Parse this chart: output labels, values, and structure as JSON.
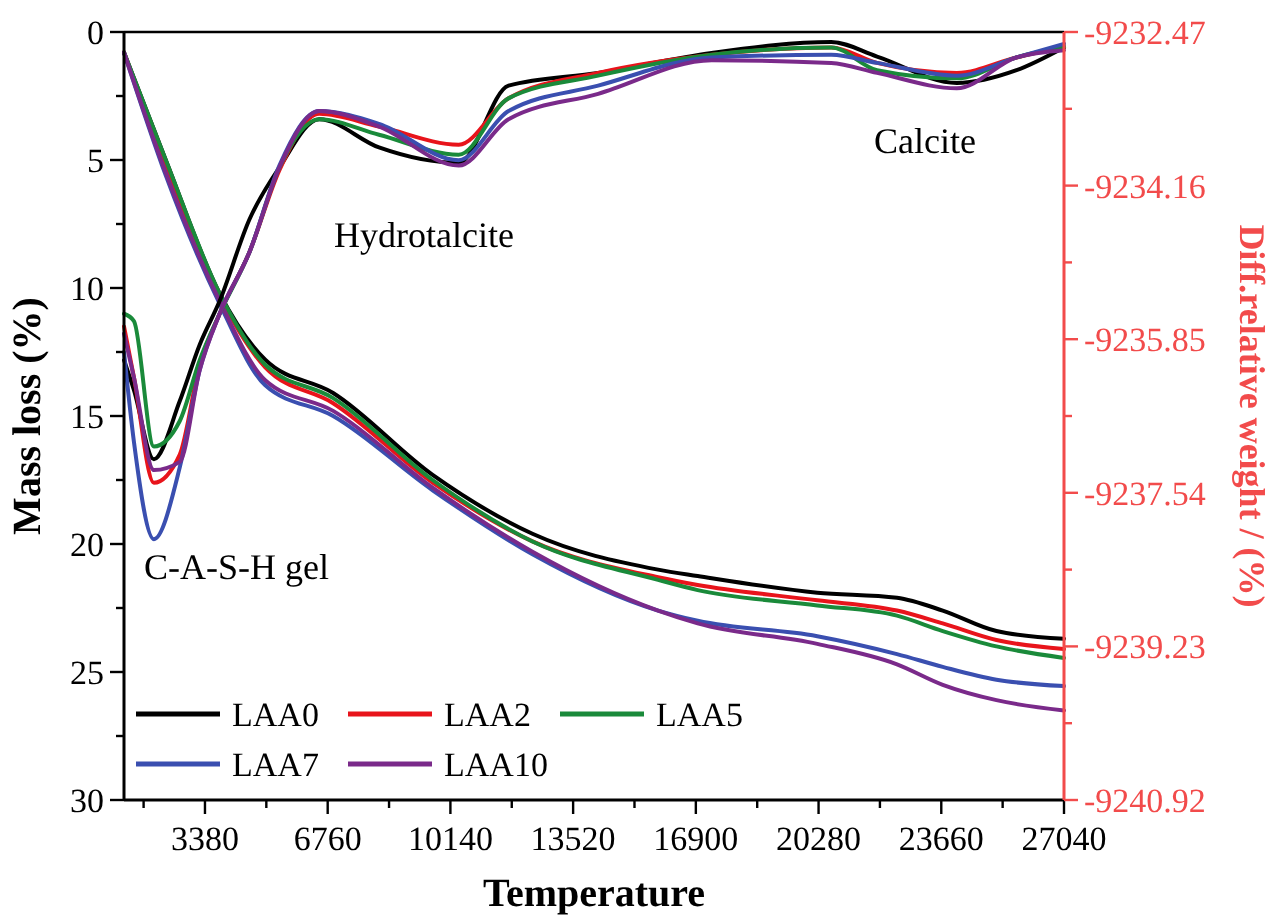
{
  "chart_data": {
    "type": "line",
    "xlabel": "Temperature",
    "ylabel": "Mass loss (%)",
    "y2label": "Diff.relative weight / (%)",
    "xlim": [
      1150,
      27040
    ],
    "xticks": [
      {
        "value": 1690,
        "label": null
      },
      3380,
      {
        "value": 5070,
        "label": null
      },
      6760,
      {
        "value": 8450,
        "label": null
      },
      10140,
      {
        "value": 11830,
        "label": null
      },
      13520,
      {
        "value": 15210,
        "label": null
      },
      16900,
      {
        "value": 18590,
        "label": null
      },
      20280,
      {
        "value": 21970,
        "label": null
      },
      23660,
      {
        "value": 25350,
        "label": null
      },
      27040
    ],
    "ylim": [
      30,
      0
    ],
    "yticks": [
      0,
      {
        "value": 2.5,
        "label": null
      },
      5,
      {
        "value": 7.5,
        "label": null
      },
      10,
      {
        "value": 12.5,
        "label": null
      },
      15,
      {
        "value": 17.5,
        "label": null
      },
      20,
      {
        "value": 22.5,
        "label": null
      },
      25,
      {
        "value": 27.5,
        "label": null
      },
      30
    ],
    "y2lim": [
      -9240.92,
      -9232.47
    ],
    "y2ticks": [
      -9232.47,
      {
        "value": -9233.315,
        "label": null
      },
      -9234.16,
      {
        "value": -9235.005,
        "label": null
      },
      -9235.85,
      {
        "value": -9236.695,
        "label": null
      },
      -9237.54,
      {
        "value": -9238.385,
        "label": null
      },
      -9239.23,
      {
        "value": -9240.075,
        "label": null
      },
      -9240.92
    ],
    "legend": "bottom left",
    "annotations": [
      "Hydrotalcite",
      "Calcite",
      "C-A-S-H gel"
    ],
    "series": [
      {
        "name": "LAA0",
        "color": "#000000",
        "x": [
          1150,
          2300,
          3780,
          5040,
          6910,
          9650,
          12400,
          15860,
          16950,
          20245,
          22440,
          23700,
          25180,
          27040
        ],
        "values": [
          0.8,
          5.0,
          10.2,
          12.8,
          14.1,
          17.3,
          19.6,
          21.0,
          21.25,
          21.9,
          22.1,
          22.6,
          23.4,
          23.7
        ]
      },
      {
        "name": "LAA2",
        "color": "#e8141b",
        "x": [
          1150,
          2300,
          3780,
          5040,
          6910,
          9650,
          12400,
          15860,
          16950,
          20245,
          22440,
          23700,
          25180,
          27040
        ],
        "values": [
          0.8,
          5.2,
          10.3,
          13.1,
          14.5,
          17.6,
          19.9,
          21.3,
          21.6,
          22.2,
          22.6,
          23.1,
          23.75,
          24.1
        ]
      },
      {
        "name": "LAA5",
        "color": "#1a8a3a",
        "x": [
          1150,
          2300,
          3780,
          5040,
          6910,
          9650,
          12400,
          15860,
          16950,
          20245,
          22440,
          23700,
          25180,
          27040
        ],
        "values": [
          0.8,
          5.0,
          10.2,
          13.0,
          14.3,
          17.5,
          19.9,
          21.4,
          21.8,
          22.4,
          22.8,
          23.4,
          24.0,
          24.45
        ]
      },
      {
        "name": "LAA7",
        "color": "#3a4fb0",
        "x": [
          1150,
          2300,
          3780,
          5040,
          6910,
          9650,
          12400,
          15860,
          16950,
          20245,
          22440,
          23700,
          25180,
          27040
        ],
        "values": [
          0.8,
          5.6,
          10.6,
          13.8,
          15.0,
          17.9,
          20.4,
          22.6,
          23.0,
          23.6,
          24.3,
          24.8,
          25.3,
          25.55
        ]
      },
      {
        "name": "LAA10",
        "color": "#7a2a8a",
        "x": [
          1150,
          2300,
          3780,
          5040,
          6910,
          9650,
          12400,
          15860,
          16950,
          20245,
          22440,
          23700,
          25180,
          27040
        ],
        "values": [
          0.8,
          5.5,
          10.5,
          13.6,
          14.8,
          17.8,
          20.3,
          22.6,
          23.1,
          23.9,
          24.7,
          25.5,
          26.1,
          26.5
        ]
      },
      {
        "axis": "y2",
        "color": "#000000",
        "x": [
          1150,
          1424,
          1973,
          2686,
          3235,
          3784,
          4607,
          5430,
          6527,
          8173,
          10368,
          11740,
          14209,
          17337,
          20629,
          21891,
          24086,
          25732,
          27040
        ],
        "values": [
          -9236.08,
          -9236.41,
          -9237.17,
          -9236.53,
          -9235.91,
          -9235.43,
          -9234.53,
          -9233.96,
          -9233.43,
          -9233.74,
          -9233.91,
          -9233.06,
          -9232.92,
          -9232.7,
          -9232.58,
          -9232.74,
          -9233.03,
          -9232.89,
          -9232.64
        ]
      },
      {
        "axis": "y2",
        "color": "#e8141b",
        "x": [
          1150,
          1424,
          1973,
          2686,
          3235,
          3784,
          4607,
          5430,
          6527,
          8173,
          10368,
          11740,
          14209,
          17337,
          20629,
          21891,
          24086,
          25732,
          27040
        ],
        "values": [
          -9235.71,
          -9236.27,
          -9237.43,
          -9237.12,
          -9236.13,
          -9235.57,
          -9234.89,
          -9233.99,
          -9233.37,
          -9233.51,
          -9233.71,
          -9233.2,
          -9232.92,
          -9232.72,
          -9232.64,
          -9232.81,
          -9232.92,
          -9232.75,
          -9232.63
        ]
      },
      {
        "axis": "y2",
        "color": "#1a8a3a",
        "x": [
          1150,
          1424,
          1973,
          2686,
          3235,
          3784,
          4607,
          5430,
          6527,
          8173,
          10368,
          11740,
          14209,
          17337,
          20629,
          21891,
          24086,
          25732,
          27040
        ],
        "values": [
          -9235.57,
          -9235.65,
          -9237.03,
          -9236.75,
          -9236.08,
          -9235.57,
          -9234.89,
          -9233.96,
          -9233.43,
          -9233.6,
          -9233.82,
          -9233.2,
          -9232.95,
          -9232.72,
          -9232.64,
          -9232.89,
          -9232.98,
          -9232.75,
          -9232.63
        ]
      },
      {
        "axis": "y2",
        "color": "#3a4fb0",
        "x": [
          1150,
          1424,
          1973,
          2686,
          3235,
          3784,
          4607,
          5430,
          6527,
          8173,
          10368,
          11740,
          14209,
          17337,
          20629,
          21891,
          24086,
          25732,
          27040
        ],
        "values": [
          -9235.99,
          -9236.98,
          -9238.05,
          -9237.26,
          -9236.19,
          -9235.57,
          -9234.89,
          -9233.94,
          -9233.34,
          -9233.48,
          -9233.88,
          -9233.34,
          -9233.06,
          -9232.75,
          -9232.72,
          -9232.81,
          -9232.95,
          -9232.75,
          -9232.6
        ]
      },
      {
        "axis": "y2",
        "color": "#7a2a8a",
        "x": [
          1150,
          1424,
          1973,
          2686,
          3235,
          3784,
          4607,
          5430,
          6527,
          8173,
          10368,
          11740,
          14209,
          17337,
          20629,
          21891,
          24086,
          25732,
          27040
        ],
        "values": [
          -9235.79,
          -9236.27,
          -9237.29,
          -9237.2,
          -9236.19,
          -9235.57,
          -9234.89,
          -9233.96,
          -9233.34,
          -9233.51,
          -9233.94,
          -9233.43,
          -9233.15,
          -9232.78,
          -9232.81,
          -9232.92,
          -9233.09,
          -9232.75,
          -9232.67
        ]
      }
    ]
  }
}
